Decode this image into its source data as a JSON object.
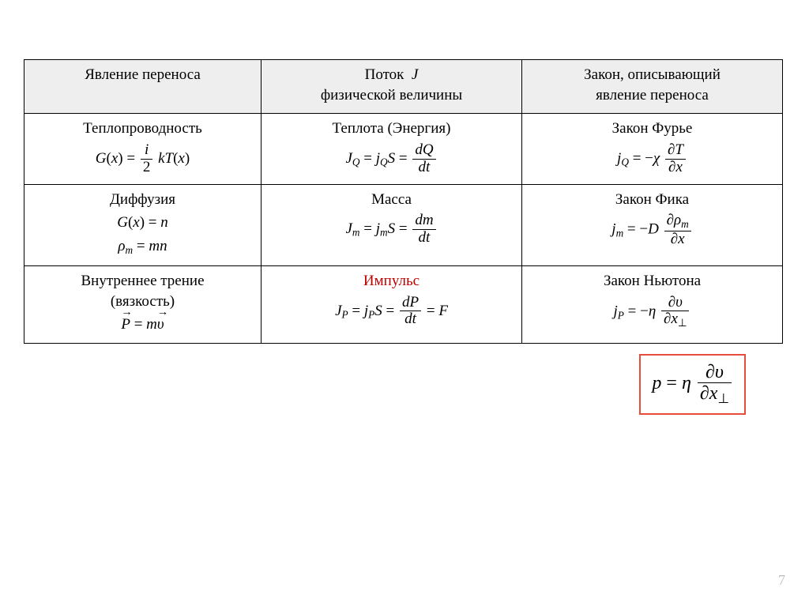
{
  "colors": {
    "background": "#ffffff",
    "text": "#000000",
    "headerBg": "#eeeeee",
    "border": "#000000",
    "accentRed": "#c00000",
    "boxBorder": "#e84c3d",
    "pageNum": "#bfbfbf"
  },
  "typography": {
    "fontFamily": "Times New Roman",
    "baseFontSize": 19,
    "boxedFontSize": 24,
    "pageNumFontSize": 18
  },
  "layout": {
    "pageWidth": 1024,
    "pageHeight": 767,
    "tableWidth": 960,
    "col1Width": 300,
    "col2Width": 330,
    "col3Width": 330,
    "boxedRight": 80,
    "boxedTop": 448
  },
  "table": {
    "headers": {
      "col1": "Явление переноса",
      "col2_line1": "Поток",
      "col2_line1_sym": "J",
      "col2_line2": "физической величины",
      "col3_line1": "Закон, описывающий",
      "col3_line2": "явление переноса"
    },
    "rows": [
      {
        "phenomenon_title": "Теплопроводность",
        "flux_title": "Теплота (Энергия)",
        "law_title": "Закон Фурье",
        "eq1_tex": "G(x) = (i/2) k T(x)",
        "eq2_tex": "J_Q = j_Q S = dQ/dt",
        "eq3_tex": "j_Q = -χ ∂T/∂x"
      },
      {
        "phenomenon_title": "Диффузия",
        "flux_title": "Масса",
        "law_title": "Закон Фика",
        "eq1a_tex": "G(x) = n",
        "eq1b_tex": "ρ_m = m n",
        "eq2_tex": "J_m = j_m S = dm/dt",
        "eq3_tex": "j_m = -D ∂ρ_m/∂x"
      },
      {
        "phenomenon_title_line1": "Внутреннее трение",
        "phenomenon_title_line2": "(вязкость)",
        "flux_title": "Импульс",
        "flux_title_color": "#c00000",
        "law_title": "Закон Ньютона",
        "eq1_tex": "P⃗ = m υ⃗",
        "eq2_tex": "J_P = j_P S = dP/dt = F",
        "eq3_tex": "j_P = -η ∂υ/∂x_⊥"
      }
    ]
  },
  "boxed_equation_tex": "p = η ∂υ/∂x_⊥",
  "pageNumber": "7"
}
